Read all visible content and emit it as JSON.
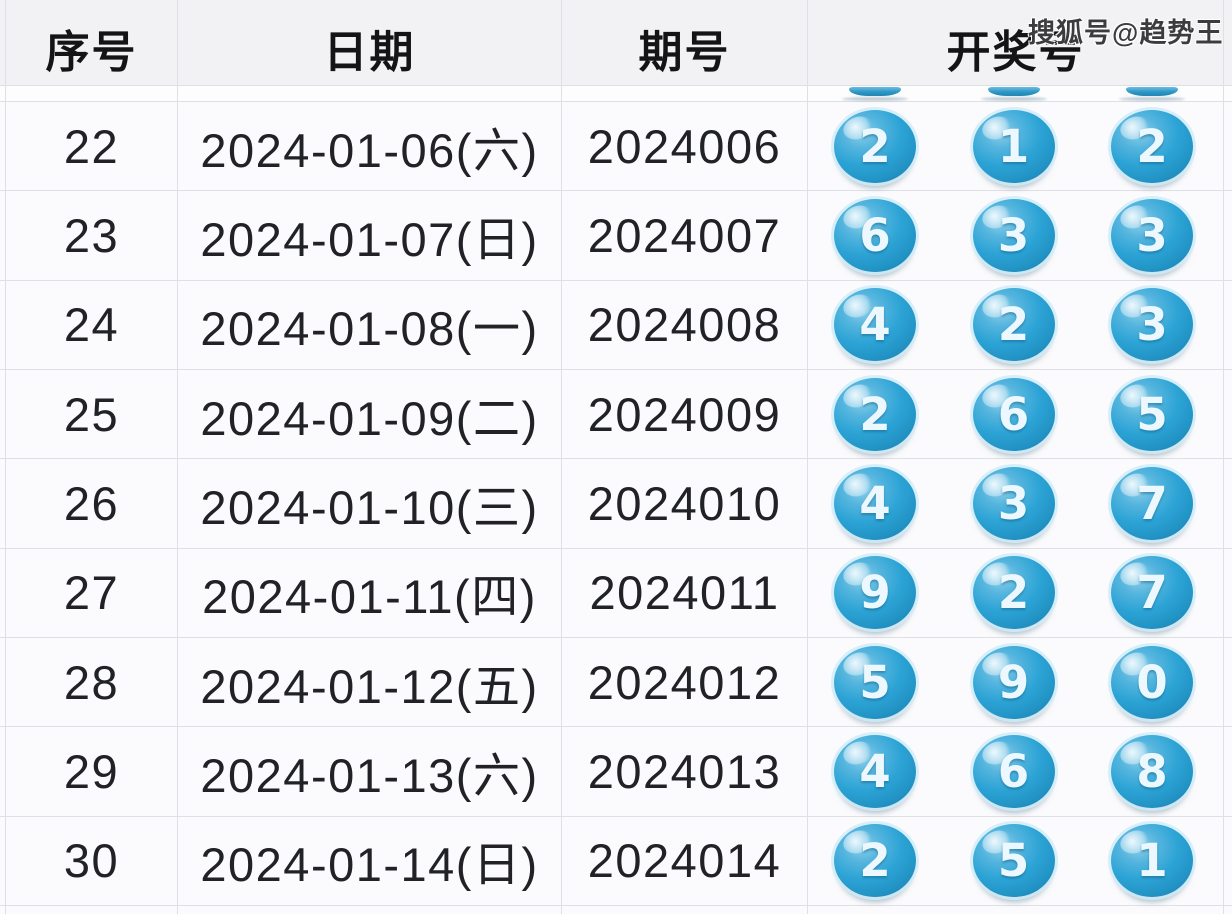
{
  "watermark": "搜狐号@趋势王",
  "table": {
    "columns": [
      "序号",
      "日期",
      "期号",
      "开奖号"
    ],
    "rows": [
      {
        "seq": "22",
        "date": "2024-01-06(六)",
        "period": "2024006",
        "balls": [
          "2",
          "1",
          "2"
        ]
      },
      {
        "seq": "23",
        "date": "2024-01-07(日)",
        "period": "2024007",
        "balls": [
          "6",
          "3",
          "3"
        ]
      },
      {
        "seq": "24",
        "date": "2024-01-08(一)",
        "period": "2024008",
        "balls": [
          "4",
          "2",
          "3"
        ]
      },
      {
        "seq": "25",
        "date": "2024-01-09(二)",
        "period": "2024009",
        "balls": [
          "2",
          "6",
          "5"
        ]
      },
      {
        "seq": "26",
        "date": "2024-01-10(三)",
        "period": "2024010",
        "balls": [
          "4",
          "3",
          "7"
        ]
      },
      {
        "seq": "27",
        "date": "2024-01-11(四)",
        "period": "2024011",
        "balls": [
          "9",
          "2",
          "7"
        ]
      },
      {
        "seq": "28",
        "date": "2024-01-12(五)",
        "period": "2024012",
        "balls": [
          "5",
          "9",
          "0"
        ]
      },
      {
        "seq": "29",
        "date": "2024-01-13(六)",
        "period": "2024013",
        "balls": [
          "4",
          "6",
          "8"
        ]
      },
      {
        "seq": "30",
        "date": "2024-01-14(日)",
        "period": "2024014",
        "balls": [
          "2",
          "5",
          "1"
        ]
      }
    ],
    "partial_top_row_balls": 3
  },
  "colors": {
    "header_bg": "#f2f2f5",
    "row_bg": "#fbfbfd",
    "border": "#dfe0e5",
    "text": "#212226",
    "ball_main": "#2da4d6",
    "ball_dark": "#1b7eae",
    "ball_highlight": "#d6edf8",
    "ball_text": "#ecf8fd",
    "watermark_color": "#3c3c3e"
  }
}
